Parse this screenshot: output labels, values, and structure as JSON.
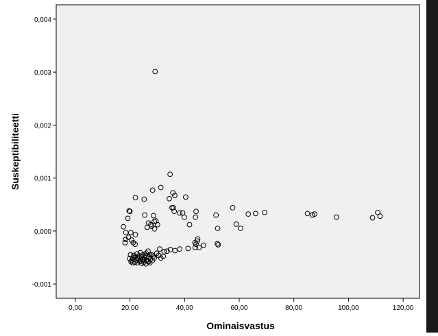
{
  "chart_data": {
    "type": "scatter",
    "title": "",
    "xlabel": "Ominaisvastus",
    "ylabel": "Suskeptibiliteetti",
    "xlim": [
      -7,
      126
    ],
    "ylim": [
      -0.00127,
      0.00427
    ],
    "x_ticks": [
      0,
      20,
      40,
      60,
      80,
      100,
      120
    ],
    "x_tick_labels": [
      "0,00",
      "20,00",
      "40,00",
      "60,00",
      "80,00",
      "100,00",
      "120,00"
    ],
    "y_ticks": [
      -0.001,
      0,
      0.001,
      0.002,
      0.003,
      0.004
    ],
    "y_tick_labels": [
      "-0,001",
      "0,000",
      "0,001",
      "0,002",
      "0,003",
      "0,004"
    ],
    "grid": false,
    "background": "#f0f0f0",
    "marker": "hollow-circle",
    "marker_color": "#000000",
    "points": [
      [
        29.2,
        0.00301
      ],
      [
        34.7,
        0.00107
      ],
      [
        28.3,
        0.00077
      ],
      [
        31.3,
        0.00082
      ],
      [
        22.0,
        0.00063
      ],
      [
        25.2,
        0.0006
      ],
      [
        36.4,
        0.00067
      ],
      [
        34.4,
        0.00061
      ],
      [
        40.4,
        0.00064
      ],
      [
        35.7,
        0.00072
      ],
      [
        19.7,
        0.00038
      ],
      [
        20.0,
        0.00037
      ],
      [
        35.4,
        0.00044
      ],
      [
        35.9,
        0.00044
      ],
      [
        57.6,
        0.00044
      ],
      [
        36.2,
        0.00037
      ],
      [
        38.2,
        0.00034
      ],
      [
        39.3,
        0.00034
      ],
      [
        44.2,
        0.00037
      ],
      [
        25.4,
        0.0003
      ],
      [
        28.6,
        0.00029
      ],
      [
        39.9,
        0.00026
      ],
      [
        44.0,
        0.00026
      ],
      [
        51.5,
        0.0003
      ],
      [
        63.3,
        0.00032
      ],
      [
        66.0,
        0.00033
      ],
      [
        69.3,
        0.00035
      ],
      [
        85.0,
        0.00033
      ],
      [
        86.8,
        0.0003
      ],
      [
        87.6,
        0.00032
      ],
      [
        95.6,
        0.00026
      ],
      [
        108.8,
        0.00025
      ],
      [
        110.7,
        0.00035
      ],
      [
        111.6,
        0.00028
      ],
      [
        19.2,
        0.00024
      ],
      [
        29.5,
        0.00019
      ],
      [
        28.9,
        0.00018
      ],
      [
        30.1,
        0.00012
      ],
      [
        26.8,
        0.00015
      ],
      [
        27.6,
        0.00012
      ],
      [
        27.9,
        9e-05
      ],
      [
        26.3,
        7e-05
      ],
      [
        17.6,
        8e-05
      ],
      [
        29.0,
        4e-05
      ],
      [
        41.8,
        0.00012
      ],
      [
        52.1,
        5e-05
      ],
      [
        58.9,
        0.00013
      ],
      [
        60.5,
        5e-05
      ],
      [
        18.5,
        -3e-05
      ],
      [
        20.3,
        -3e-05
      ],
      [
        22.0,
        -7e-05
      ],
      [
        19.5,
        -0.00012
      ],
      [
        18.4,
        -0.00016
      ],
      [
        18.2,
        -0.00022
      ],
      [
        20.6,
        -0.00017
      ],
      [
        21.2,
        -0.00022
      ],
      [
        21.9,
        -0.00025
      ],
      [
        44.8,
        -0.00015
      ],
      [
        44.6,
        -0.00019
      ],
      [
        43.8,
        -0.00022
      ],
      [
        44.2,
        -0.00025
      ],
      [
        52.0,
        -0.00024
      ],
      [
        52.3,
        -0.00026
      ],
      [
        46.9,
        -0.00027
      ],
      [
        45.3,
        -0.00031
      ],
      [
        43.9,
        -0.00031
      ],
      [
        41.3,
        -0.00033
      ],
      [
        36.5,
        -0.00037
      ],
      [
        38.2,
        -0.00034
      ],
      [
        34.8,
        -0.00035
      ],
      [
        33.6,
        -0.00038
      ],
      [
        32.5,
        -0.00039
      ],
      [
        30.9,
        -0.00034
      ],
      [
        29.8,
        -0.00042
      ],
      [
        30.5,
        -0.00046
      ],
      [
        32.2,
        -0.00048
      ],
      [
        31.3,
        -0.00051
      ],
      [
        28.4,
        -0.00048
      ],
      [
        27.3,
        -0.00045
      ],
      [
        26.6,
        -0.00038
      ],
      [
        25.9,
        -0.00042
      ],
      [
        24.7,
        -0.00045
      ],
      [
        23.8,
        -0.00041
      ],
      [
        22.6,
        -0.00043
      ],
      [
        21.4,
        -0.00046
      ],
      [
        20.2,
        -0.00045
      ],
      [
        19.9,
        -0.00052
      ],
      [
        20.7,
        -0.00055
      ],
      [
        21.5,
        -0.0005
      ],
      [
        22.3,
        -0.00055
      ],
      [
        23.1,
        -0.00052
      ],
      [
        23.9,
        -0.00057
      ],
      [
        24.6,
        -0.00054
      ],
      [
        25.3,
        -0.0005
      ],
      [
        26.1,
        -0.00055
      ],
      [
        26.8,
        -0.00058
      ],
      [
        27.5,
        -0.00053
      ],
      [
        28.2,
        -0.00056
      ],
      [
        28.9,
        -0.00051
      ],
      [
        21.0,
        -0.0006
      ],
      [
        21.8,
        -0.00059
      ],
      [
        22.7,
        -0.0006
      ],
      [
        23.5,
        -0.00057
      ],
      [
        24.3,
        -0.00061
      ],
      [
        25.1,
        -0.00059
      ],
      [
        25.8,
        -0.00062
      ],
      [
        26.5,
        -0.00057
      ],
      [
        27.3,
        -0.0006
      ],
      [
        20.4,
        -0.00058
      ],
      [
        22.0,
        -0.00048
      ],
      [
        23.3,
        -0.00047
      ],
      [
        24.2,
        -0.00049
      ],
      [
        25.6,
        -0.00046
      ],
      [
        27.0,
        -0.00049
      ],
      [
        28.0,
        -0.00045
      ],
      [
        24.9,
        -0.00055
      ],
      [
        26.2,
        -0.00048
      ],
      [
        21.1,
        -0.00052
      ],
      [
        22.8,
        -0.00051
      ]
    ]
  }
}
